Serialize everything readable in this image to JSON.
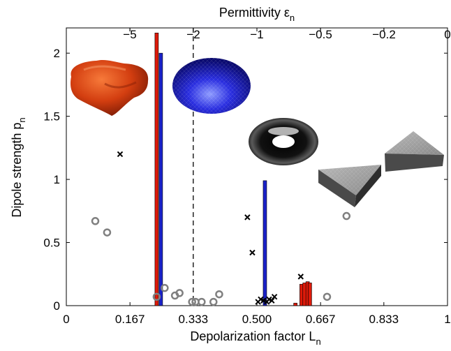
{
  "chart_data": {
    "type": "bar",
    "xlabel_main": "Depolarization factor L",
    "xlabel_sub": "n",
    "ylabel_main": "Dipole strength p",
    "ylabel_sub": "n",
    "top_label_main": "Permittivity ε",
    "top_label_sub": "n",
    "xlim": [
      0,
      1
    ],
    "ylim": [
      0,
      2.2
    ],
    "x_ticks": [
      {
        "value": 0,
        "label": "0"
      },
      {
        "value": 0.167,
        "label": "0.167"
      },
      {
        "value": 0.333,
        "label": "0.333"
      },
      {
        "value": 0.5,
        "label": "0.500"
      },
      {
        "value": 0.667,
        "label": "0.667"
      },
      {
        "value": 0.833,
        "label": "0.833"
      },
      {
        "value": 1,
        "label": "1"
      }
    ],
    "y_ticks": [
      {
        "value": 0,
        "label": "0"
      },
      {
        "value": 0.5,
        "label": "0.5"
      },
      {
        "value": 1,
        "label": "1"
      },
      {
        "value": 1.5,
        "label": "1.5"
      },
      {
        "value": 2,
        "label": "2"
      }
    ],
    "top_ticks": [
      {
        "epsilon": -5,
        "label": "−5"
      },
      {
        "epsilon": -2,
        "label": "−2"
      },
      {
        "epsilon": -1,
        "label": "−1"
      },
      {
        "epsilon": -0.5,
        "label": "−0.5"
      },
      {
        "epsilon": -0.2,
        "label": "−0.2"
      },
      {
        "epsilon": 0,
        "label": "0"
      }
    ],
    "reference_line_x": 0.333,
    "series": [
      {
        "marker": "bar",
        "color": "#dd1a0a",
        "points": [
          {
            "x": 0.237,
            "y": 2.16
          },
          {
            "x": 0.601,
            "y": 0.02
          },
          {
            "x": 0.617,
            "y": 0.17
          },
          {
            "x": 0.625,
            "y": 0.18
          },
          {
            "x": 0.633,
            "y": 0.19
          },
          {
            "x": 0.639,
            "y": 0.18
          }
        ]
      },
      {
        "marker": "bar",
        "color": "#1a22c8",
        "points": [
          {
            "x": 0.248,
            "y": 2.0
          },
          {
            "x": 0.521,
            "y": 0.99
          }
        ]
      },
      {
        "marker": "cross",
        "color": "#000000",
        "points": [
          {
            "x": 0.141,
            "y": 1.2
          },
          {
            "x": 0.475,
            "y": 0.7
          },
          {
            "x": 0.488,
            "y": 0.42
          },
          {
            "x": 0.503,
            "y": 0.03
          },
          {
            "x": 0.51,
            "y": 0.05
          },
          {
            "x": 0.517,
            "y": 0.04
          },
          {
            "x": 0.526,
            "y": 0.03
          },
          {
            "x": 0.532,
            "y": 0.05
          },
          {
            "x": 0.539,
            "y": 0.04
          },
          {
            "x": 0.546,
            "y": 0.07
          },
          {
            "x": 0.615,
            "y": 0.23
          }
        ]
      },
      {
        "marker": "circle",
        "color": "#808080",
        "points": [
          {
            "x": 0.076,
            "y": 0.67
          },
          {
            "x": 0.107,
            "y": 0.58
          },
          {
            "x": 0.237,
            "y": 0.07
          },
          {
            "x": 0.258,
            "y": 0.14
          },
          {
            "x": 0.285,
            "y": 0.08
          },
          {
            "x": 0.297,
            "y": 0.1
          },
          {
            "x": 0.33,
            "y": 0.03
          },
          {
            "x": 0.339,
            "y": 0.03
          },
          {
            "x": 0.355,
            "y": 0.03
          },
          {
            "x": 0.386,
            "y": 0.03
          },
          {
            "x": 0.401,
            "y": 0.09
          },
          {
            "x": 0.684,
            "y": 0.07
          },
          {
            "x": 0.735,
            "y": 0.71
          }
        ]
      }
    ],
    "inset_shapes": [
      {
        "name": "tetrahedron-shape",
        "color": "#d23c10"
      },
      {
        "name": "spheroid-shape",
        "color": "#1414c8"
      },
      {
        "name": "torus-shape",
        "color": "#111111"
      },
      {
        "name": "triangular-prism-shape",
        "color": "#8a8a8a"
      },
      {
        "name": "triangular-prism-shape-2",
        "color": "#8a8a8a"
      }
    ]
  }
}
